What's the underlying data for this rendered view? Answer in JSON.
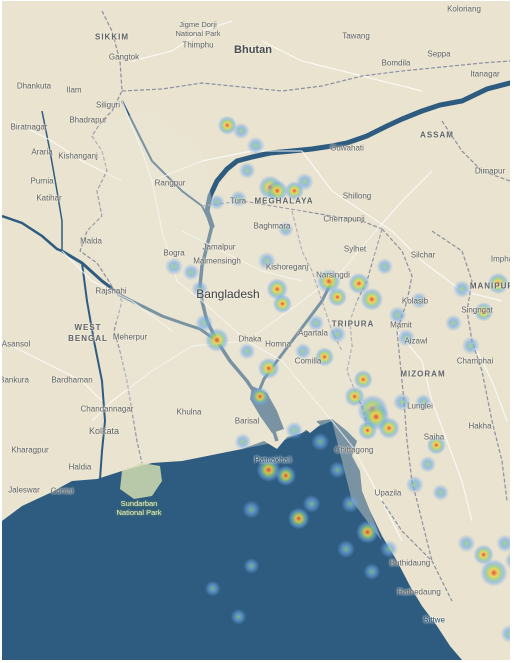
{
  "map": {
    "colors": {
      "land": "#e9e3cf",
      "sea": "#2e5c80",
      "river": "#2e5c80",
      "border": "#8c8fa3",
      "road": "#ffffff",
      "park": "#cfdcb0",
      "heat_low": "#6fa8e8",
      "heat_mid": "#8fce7a",
      "heat_high": "#f2d24a",
      "heat_peak": "#e2443a"
    },
    "labels": {
      "sikkim": "SIKKIM",
      "gangtok": "Gangtok",
      "jigme": "Jigme Dorji\nNational Park",
      "thimphu": "Thimphu",
      "bhutan": "Bhutan",
      "tawang": "Tawang",
      "koloriang": "Koloriang",
      "seppa": "Seppa",
      "bomdila": "Bomdila",
      "itanagar": "Itanagar",
      "dhankuta": "Dhankuta",
      "ilam": "Ilam",
      "siliguri": "Siliguri",
      "biratnagar": "Biratnagar",
      "bhadrapur": "Bhadrapur",
      "assam": "ASSAM",
      "araria": "Araria",
      "kishanganj": "Kishanganj",
      "guwahati": "Guwahati",
      "dimapur": "Dimapur",
      "purnia": "Purnia",
      "rangpur": "Rangpur",
      "shillong": "Shillong",
      "katihar": "Katihar",
      "tura": "Tura",
      "meghalaya": "MEGHALAYA",
      "bagmara": "Baghmara",
      "cherrapunji": "Cherrapunji",
      "malda": "Malda",
      "jamalpur": "Jamalpur",
      "sylhet": "Sylhet",
      "silchar": "Silchar",
      "impha": "Impha",
      "rajshahi": "Rajshahi",
      "bogra": "Bogra",
      "maimensingh": "Maimensingh",
      "kishoreganj": "Kishoreganj",
      "narsingdi": "Narsingdi",
      "kolasib": "Kolasib",
      "manipur": "MANIPUR",
      "bangladesh": "Bangladesh",
      "west_bengal": "WEST\nBENGAL",
      "dhaka": "Dhaka",
      "agartala": "Agartala",
      "tripura": "TRIPURA",
      "mamit": "Mamit",
      "singngat": "Singngat",
      "asansol": "Asansol",
      "meherpur": "Meherpur",
      "aizawl": "Aizawl",
      "bankura": "Bankura",
      "homna": "Homna",
      "comilla": "Comilla",
      "champhai": "Champhai",
      "bardhaman": "Bardhaman",
      "mizoram": "MIZORAM",
      "chandannagar": "Chandannagar",
      "khulna": "Khulna",
      "lunglei": "Lunglei",
      "kolkata": "Kolkata",
      "barisal": "Barisal",
      "saiha": "Saiha",
      "hakha": "Hakha",
      "kharagpur": "Kharagpur",
      "patuakhali": "Patuakhali",
      "chittagong": "Chittagong",
      "haldia": "Haldia",
      "jaleswar": "Jaleswar",
      "contai": "Contai",
      "sundarban": "Sundarban\nNational Park",
      "upazila": "Upazila",
      "buthidaung": "Buthidaung",
      "rathedaung": "Rathedaung",
      "sittwe": "Sittwe"
    },
    "heat_points": [
      {
        "lon": 88.72,
        "lat": 26.3,
        "w": 0.6
      },
      {
        "lon": 88.88,
        "lat": 26.25,
        "w": 0.4
      },
      {
        "lon": 89.05,
        "lat": 26.12,
        "w": 0.5
      },
      {
        "lon": 89.22,
        "lat": 25.75,
        "w": 1.0
      },
      {
        "lon": 89.3,
        "lat": 25.72,
        "w": 0.8
      },
      {
        "lon": 89.5,
        "lat": 25.72,
        "w": 0.6
      },
      {
        "lon": 89.62,
        "lat": 25.8,
        "w": 0.5
      },
      {
        "lon": 88.95,
        "lat": 25.9,
        "w": 0.4
      },
      {
        "lon": 88.85,
        "lat": 25.65,
        "w": 0.4
      },
      {
        "lon": 88.6,
        "lat": 25.62,
        "w": 0.3
      },
      {
        "lon": 89.4,
        "lat": 25.38,
        "w": 0.3
      },
      {
        "lon": 89.18,
        "lat": 25.1,
        "w": 0.5
      },
      {
        "lon": 89.3,
        "lat": 24.85,
        "w": 0.8
      },
      {
        "lon": 89.36,
        "lat": 24.72,
        "w": 0.6
      },
      {
        "lon": 89.9,
        "lat": 24.92,
        "w": 1.0
      },
      {
        "lon": 90.0,
        "lat": 24.78,
        "w": 0.6
      },
      {
        "lon": 90.25,
        "lat": 24.9,
        "w": 0.8
      },
      {
        "lon": 90.4,
        "lat": 24.76,
        "w": 0.9
      },
      {
        "lon": 90.7,
        "lat": 24.62,
        "w": 0.5
      },
      {
        "lon": 90.95,
        "lat": 24.75,
        "w": 0.4
      },
      {
        "lon": 90.8,
        "lat": 24.42,
        "w": 0.5
      },
      {
        "lon": 88.6,
        "lat": 24.4,
        "w": 1.0
      },
      {
        "lon": 88.45,
        "lat": 24.55,
        "w": 0.5
      },
      {
        "lon": 88.95,
        "lat": 24.3,
        "w": 0.4
      },
      {
        "lon": 89.2,
        "lat": 24.15,
        "w": 0.8
      },
      {
        "lon": 89.6,
        "lat": 24.3,
        "w": 0.4
      },
      {
        "lon": 89.85,
        "lat": 24.25,
        "w": 0.6
      },
      {
        "lon": 90.0,
        "lat": 24.45,
        "w": 0.5
      },
      {
        "lon": 90.3,
        "lat": 24.05,
        "w": 0.6
      },
      {
        "lon": 90.2,
        "lat": 23.9,
        "w": 0.7
      },
      {
        "lon": 90.41,
        "lat": 23.78,
        "w": 1.6
      },
      {
        "lon": 90.45,
        "lat": 23.72,
        "w": 1.3
      },
      {
        "lon": 90.6,
        "lat": 23.62,
        "w": 0.8
      },
      {
        "lon": 90.35,
        "lat": 23.6,
        "w": 0.6
      },
      {
        "lon": 90.75,
        "lat": 23.85,
        "w": 0.5
      },
      {
        "lon": 91.0,
        "lat": 23.85,
        "w": 0.4
      },
      {
        "lon": 91.15,
        "lat": 23.47,
        "w": 0.6
      },
      {
        "lon": 91.05,
        "lat": 23.3,
        "w": 0.4
      },
      {
        "lon": 90.9,
        "lat": 23.12,
        "w": 0.5
      },
      {
        "lon": 91.2,
        "lat": 23.05,
        "w": 0.4
      },
      {
        "lon": 91.87,
        "lat": 24.9,
        "w": 0.8
      },
      {
        "lon": 91.7,
        "lat": 24.65,
        "w": 0.6
      },
      {
        "lon": 91.55,
        "lat": 24.35,
        "w": 0.5
      },
      {
        "lon": 91.45,
        "lat": 24.85,
        "w": 0.5
      },
      {
        "lon": 91.35,
        "lat": 24.55,
        "w": 0.4
      },
      {
        "lon": 89.1,
        "lat": 23.9,
        "w": 0.6
      },
      {
        "lon": 89.5,
        "lat": 23.6,
        "w": 0.5
      },
      {
        "lon": 89.8,
        "lat": 23.5,
        "w": 0.5
      },
      {
        "lon": 89.2,
        "lat": 23.25,
        "w": 1.0
      },
      {
        "lon": 89.4,
        "lat": 23.2,
        "w": 0.7
      },
      {
        "lon": 89.55,
        "lat": 22.82,
        "w": 0.8
      },
      {
        "lon": 89.7,
        "lat": 22.95,
        "w": 0.5
      },
      {
        "lon": 89.0,
        "lat": 22.9,
        "w": 0.5
      },
      {
        "lon": 88.9,
        "lat": 23.5,
        "w": 0.4
      },
      {
        "lon": 90.0,
        "lat": 23.25,
        "w": 0.4
      },
      {
        "lon": 90.15,
        "lat": 22.95,
        "w": 0.5
      },
      {
        "lon": 90.35,
        "lat": 22.7,
        "w": 0.9
      },
      {
        "lon": 90.6,
        "lat": 22.55,
        "w": 0.5
      },
      {
        "lon": 90.1,
        "lat": 22.55,
        "w": 0.5
      },
      {
        "lon": 90.4,
        "lat": 22.35,
        "w": 0.4
      },
      {
        "lon": 91.82,
        "lat": 22.34,
        "w": 1.3
      },
      {
        "lon": 91.7,
        "lat": 22.5,
        "w": 0.7
      },
      {
        "lon": 91.95,
        "lat": 22.6,
        "w": 0.5
      },
      {
        "lon": 92.05,
        "lat": 22.45,
        "w": 0.5
      },
      {
        "lon": 91.5,
        "lat": 22.6,
        "w": 0.5
      },
      {
        "lon": 92.0,
        "lat": 21.8,
        "w": 0.5
      },
      {
        "lon": 92.05,
        "lat": 21.45,
        "w": 0.4
      },
      {
        "lon": 92.2,
        "lat": 22.8,
        "w": 0.4
      },
      {
        "lon": 88.4,
        "lat": 24.85,
        "w": 0.4
      },
      {
        "lon": 88.1,
        "lat": 25.05,
        "w": 0.5
      },
      {
        "lon": 88.3,
        "lat": 25.0,
        "w": 0.4
      },
      {
        "lon": 89.75,
        "lat": 24.55,
        "w": 0.4
      },
      {
        "lon": 90.55,
        "lat": 25.05,
        "w": 0.4
      },
      {
        "lon": 89.0,
        "lat": 22.4,
        "w": 0.3
      },
      {
        "lon": 88.55,
        "lat": 22.2,
        "w": 0.3
      },
      {
        "lon": 88.85,
        "lat": 21.95,
        "w": 0.3
      }
    ]
  }
}
